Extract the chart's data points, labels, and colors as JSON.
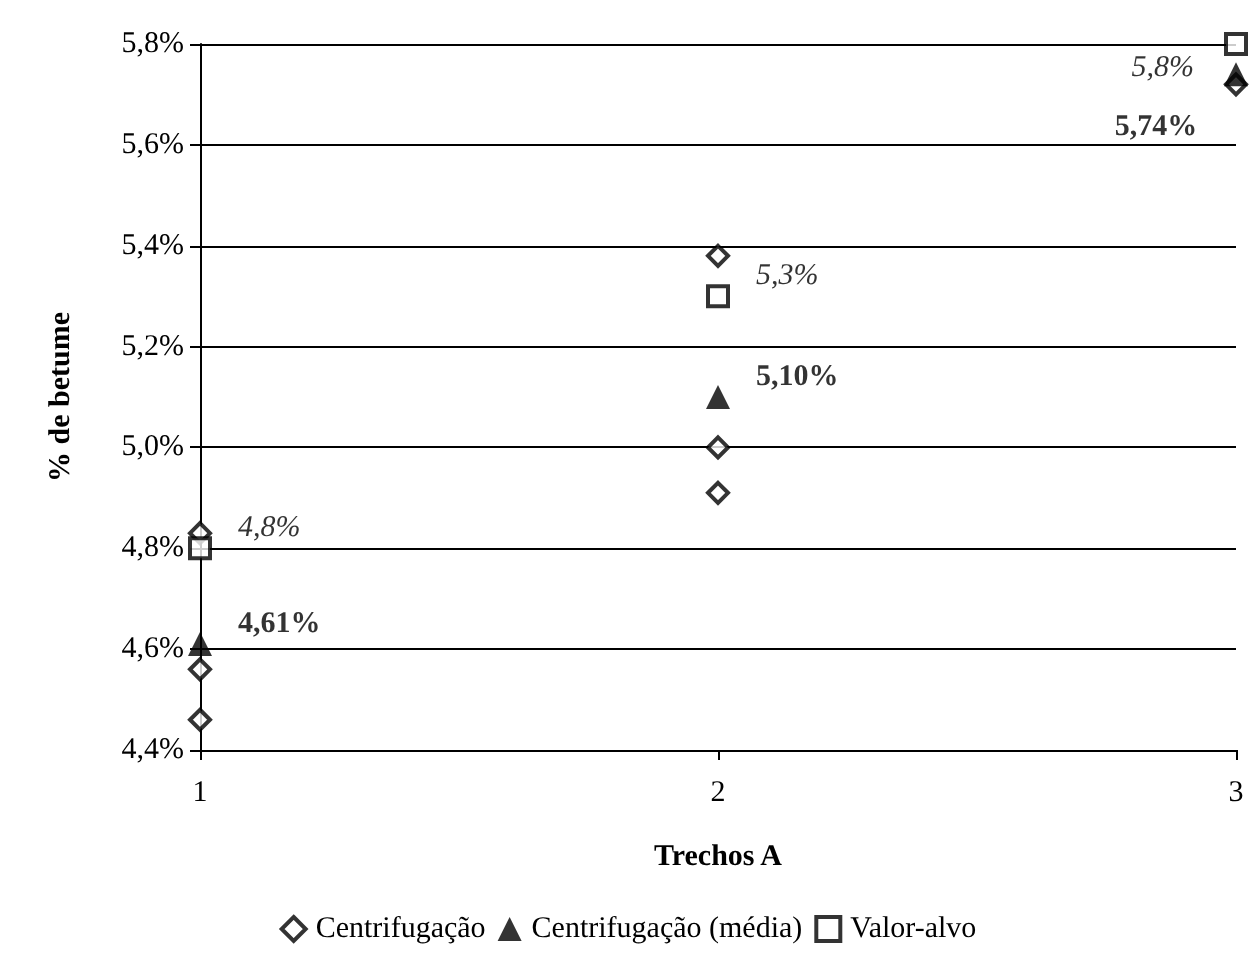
{
  "chart_data": {
    "type": "scatter",
    "xlabel": "Trechos A",
    "ylabel": "% de betume",
    "xlim": [
      1,
      3
    ],
    "xticks": [
      1,
      2,
      3
    ],
    "ylim": [
      4.4,
      5.8
    ],
    "yticks": [
      {
        "value": 4.4,
        "label": "4,4%"
      },
      {
        "value": 4.6,
        "label": "4,6%"
      },
      {
        "value": 4.8,
        "label": "4,8%"
      },
      {
        "value": 5.0,
        "label": "5,0%"
      },
      {
        "value": 5.2,
        "label": "5,2%"
      },
      {
        "value": 5.4,
        "label": "5,4%"
      },
      {
        "value": 5.6,
        "label": "5,6%"
      },
      {
        "value": 5.8,
        "label": "5,8%"
      }
    ],
    "grid": "y",
    "legend": "bottom",
    "series": [
      {
        "name": "Centrifugação",
        "color": "#000000",
        "marker": "diamond",
        "x": [
          1,
          1,
          1,
          2,
          2,
          2,
          3
        ],
        "values": [
          4.83,
          4.56,
          4.46,
          5.38,
          5.0,
          4.91,
          5.72
        ]
      },
      {
        "name": "Centrifugação (média)",
        "color": "#000000",
        "marker": "triangle",
        "x": [
          1,
          2,
          3
        ],
        "values": [
          4.61,
          5.1,
          5.74
        ],
        "value_labels": [
          "4,61%",
          "5,10%",
          "5,74%"
        ]
      },
      {
        "name": "Valor-alvo",
        "color": "#000000",
        "marker": "square",
        "x": [
          1,
          2,
          3
        ],
        "values": [
          4.8,
          5.3,
          5.8
        ],
        "value_labels": [
          "4,8%",
          "5,3%",
          "5,8%"
        ]
      }
    ]
  }
}
